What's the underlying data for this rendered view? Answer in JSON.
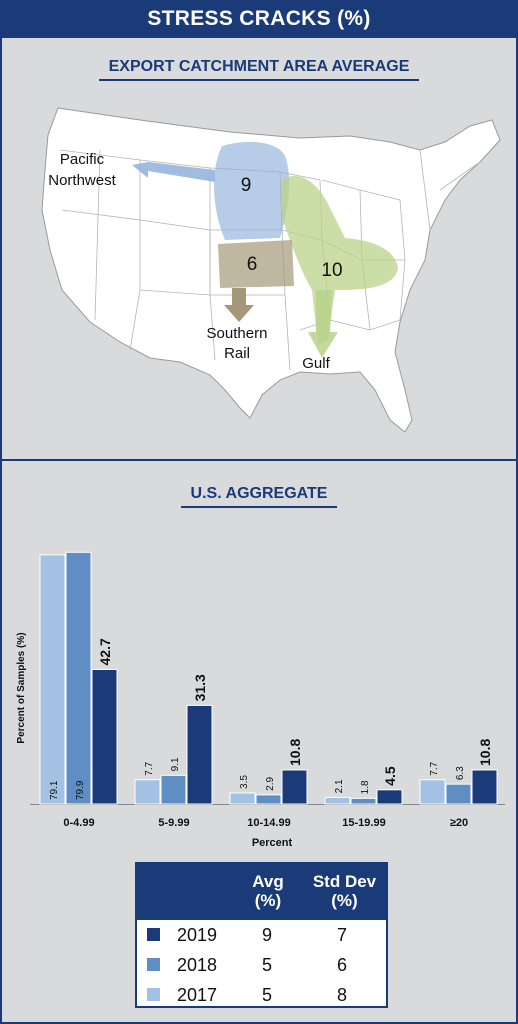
{
  "header": {
    "title": "STRESS CRACKS (%)"
  },
  "map_section": {
    "title": "EXPORT CATCHMENT AREA AVERAGE",
    "regions": [
      {
        "name": "Pacific Northwest",
        "value": "9",
        "color": "#8fb1da"
      },
      {
        "name": "Southern Rail",
        "value": "6",
        "color": "#a59878"
      },
      {
        "name": "Gulf",
        "value": "10",
        "color": "#b9d38a"
      }
    ],
    "labels": {
      "pnw_line1": "Pacific",
      "pnw_line2": "Northwest",
      "sr_line1": "Southern",
      "sr_line2": "Rail",
      "gulf": "Gulf"
    }
  },
  "aggregate_section": {
    "title": "U.S. AGGREGATE"
  },
  "chart_data": {
    "type": "bar",
    "title": "U.S. AGGREGATE",
    "xlabel": "Percent",
    "ylabel": "Percent of Samples (%)",
    "categories": [
      "0-4.99",
      "5-9.99",
      "10-14.99",
      "15-19.99",
      "≥20"
    ],
    "ylim": [
      0,
      80
    ],
    "grid": false,
    "series": [
      {
        "name": "2017",
        "values": [
          79.1,
          7.7,
          3.5,
          2.1,
          7.7
        ],
        "color": "#a3c1e2"
      },
      {
        "name": "2018",
        "values": [
          79.9,
          9.1,
          2.9,
          1.8,
          6.3
        ],
        "color": "#5f8ec5"
      },
      {
        "name": "2019",
        "values": [
          42.7,
          31.3,
          10.8,
          4.5,
          10.8
        ],
        "color": "#1a3a78"
      }
    ]
  },
  "legend_table": {
    "headers": {
      "avg_line1": "Avg",
      "avg_line2": "(%)",
      "sd_line1": "Std Dev",
      "sd_line2": "(%)"
    },
    "rows": [
      {
        "year": "2019",
        "avg": "9",
        "std": "7",
        "color": "#1a3a78"
      },
      {
        "year": "2018",
        "avg": "5",
        "std": "6",
        "color": "#5f8ec5"
      },
      {
        "year": "2017",
        "avg": "5",
        "std": "8",
        "color": "#a3c1e2"
      }
    ]
  }
}
